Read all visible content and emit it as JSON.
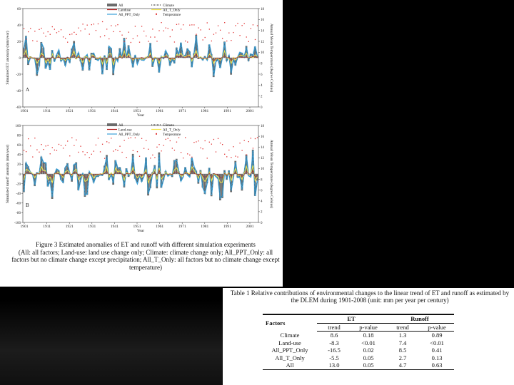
{
  "figure": {
    "panels": [
      {
        "id": "chartA",
        "panel_label": "A",
        "y_axis_label": "Simulated ET anomaly (mm/year)",
        "y2_axis_label": "Annual Mean Temperature (degree Celsius)",
        "x_axis_label": "Year",
        "y_ticks": [
          "60",
          "40",
          "20",
          "0",
          "-20",
          "-40",
          "-60"
        ],
        "y2_ticks": [
          "18",
          "16",
          "14",
          "12",
          "10",
          "8",
          "6",
          "4",
          "2",
          "0"
        ],
        "legend": [
          {
            "label": "All",
            "style": "bar",
            "color": "#6b6b6b"
          },
          {
            "label": "Climate",
            "style": "dotted",
            "color": "#444444"
          },
          {
            "label": "Landuse",
            "style": "line",
            "color": "#b02020"
          },
          {
            "label": "All_T_Only",
            "style": "line",
            "color": "#f2e64a"
          },
          {
            "label": "All_PPT_Only",
            "style": "line",
            "color": "#3aa0d8"
          },
          {
            "label": "Temperature",
            "style": "marker",
            "color": "#e03030"
          }
        ]
      },
      {
        "id": "chartB",
        "panel_label": "B",
        "y_axis_label": "Simulated runoff anomaly (mm/year)",
        "y2_axis_label": "Annual Mean Temperature (degree Celsius)",
        "x_axis_label": "Year",
        "y_ticks": [
          "100",
          "80",
          "60",
          "40",
          "20",
          "0",
          "-20",
          "-40",
          "-60",
          "-80",
          "-100"
        ],
        "y2_ticks": [
          "18",
          "16",
          "14",
          "12",
          "10",
          "8",
          "6",
          "4",
          "2",
          "0"
        ],
        "legend": [
          {
            "label": "All",
            "style": "bar",
            "color": "#6b6b6b"
          },
          {
            "label": "Climate",
            "style": "dotted",
            "color": "#444444"
          },
          {
            "label": "Land-use",
            "style": "line",
            "color": "#b02020"
          },
          {
            "label": "All_T_Only",
            "style": "line",
            "color": "#f2e64a"
          },
          {
            "label": "All_PPT_Only",
            "style": "line",
            "color": "#3aa0d8"
          },
          {
            "label": "Temperature",
            "style": "marker",
            "color": "#e03030"
          }
        ]
      }
    ],
    "x_ticks": [
      "1901",
      "1911",
      "1921",
      "1931",
      "1941",
      "1951",
      "1961",
      "1971",
      "1981",
      "1991",
      "2001"
    ],
    "caption_title": "Figure 3 Estimated anomalies of ET and runoff with different simulation experiments",
    "caption_body": "(All: all factors; Land-use: land use change only; Climate: climate change only; All_PPT_Only: all factors but no climate change except precipitation; All_T_Only: all factors but no climate change except temperature)"
  },
  "table": {
    "title": "Table 1 Relative contributions of environmental changes to the linear trend of ET and runoff as estimated by the DLEM during 1901-2008 (unit: mm per year per century)",
    "factors_header": "Factors",
    "group_headers": [
      "ET",
      "Runoff"
    ],
    "sub_headers": [
      "trend",
      "p-value",
      "trend",
      "p-value"
    ],
    "rows": [
      {
        "factor": "Climate",
        "et_trend": "8.6",
        "et_p": "0.18",
        "ro_trend": "1.3",
        "ro_p": "0.89"
      },
      {
        "factor": "Land-use",
        "et_trend": "-8.3",
        "et_p": "<0.01",
        "ro_trend": "7.4",
        "ro_p": "<0.01"
      },
      {
        "factor": "All_PPT_Only",
        "et_trend": "-16.5",
        "et_p": "0.02",
        "ro_trend": "8.5",
        "ro_p": "0.41"
      },
      {
        "factor": "All_T_Only",
        "et_trend": "-5.5",
        "et_p": "0.05",
        "ro_trend": "2.7",
        "ro_p": "0.13"
      },
      {
        "factor": "All",
        "et_trend": "13.0",
        "et_p": "0.05",
        "ro_trend": "4.7",
        "ro_p": "0.63"
      }
    ]
  }
}
